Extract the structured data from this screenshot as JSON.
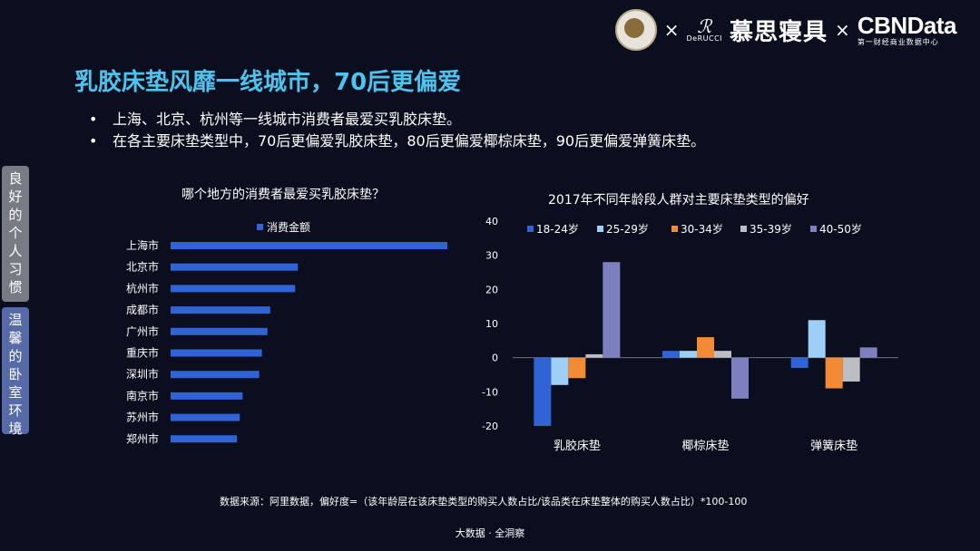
{
  "header": {
    "brand_name": "慕思寝具",
    "brand_sub": "DeRUCCI",
    "separator": "×",
    "partner_name": "CBNData",
    "partner_sub": "第一财经商业数据中心"
  },
  "title": "乳胶床垫风靡一线城市，70后更偏爱",
  "bullets": [
    "上海、北京、杭州等一线城市消费者最爱买乳胶床垫。",
    "在各主要床垫类型中，70后更偏爱乳胶床垫，80后更偏爱椰棕床垫，90后更偏爱弹簧床垫。"
  ],
  "side_tabs": [
    "良好的个人习惯",
    "温馨的卧室环境"
  ],
  "chart_data": [
    {
      "type": "bar",
      "orientation": "horizontal",
      "title": "哪个地方的消费者最爱买乳胶床垫？",
      "legend": [
        "消费金额"
      ],
      "categories": [
        "上海市",
        "北京市",
        "杭州市",
        "成都市",
        "广州市",
        "重庆市",
        "深圳市",
        "南京市",
        "苏州市",
        "郑州市"
      ],
      "values": [
        100,
        46,
        45,
        36,
        35,
        33,
        32,
        26,
        25,
        24
      ],
      "color": "#2f63d6"
    },
    {
      "type": "bar",
      "title": "2017年不同年龄段人群对主要床垫类型的偏好",
      "categories": [
        "乳胶床垫",
        "椰棕床垫",
        "弹簧床垫"
      ],
      "ylim": [
        -20,
        40
      ],
      "yticks": [
        40,
        30,
        20,
        10,
        0,
        -10,
        -20
      ],
      "legend_position": "top",
      "series": [
        {
          "name": "18-24岁",
          "color": "#2f63d6",
          "values": [
            -20,
            2,
            -3
          ]
        },
        {
          "name": "25-29岁",
          "color": "#9ed0f6",
          "values": [
            -8,
            2,
            11
          ]
        },
        {
          "name": "30-34岁",
          "color": "#f28a36",
          "values": [
            -6,
            6,
            -9
          ]
        },
        {
          "name": "35-39岁",
          "color": "#bdbdc4",
          "values": [
            1,
            2,
            -7
          ]
        },
        {
          "name": "40-50岁",
          "color": "#7d7fbf",
          "values": [
            28,
            -12,
            3
          ]
        }
      ]
    }
  ],
  "footnote": "数据来源：阿里数据，偏好度=（该年龄层在该床垫类型的购买人数占比/该品类在床垫整体的购买人数占比）*100-100",
  "footer": "大数据 · 全洞察"
}
